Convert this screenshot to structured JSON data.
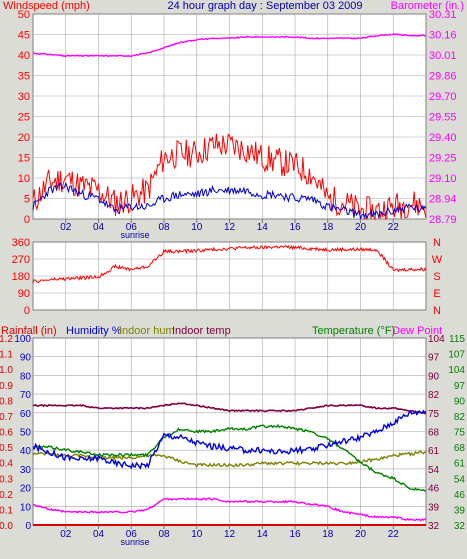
{
  "header": {
    "left_label": "Windspeed (mph)",
    "center_label": "24 hour graph day : September 03 2009",
    "right_label": "Barometer (in.)"
  },
  "colors": {
    "background": "#dcdcd6",
    "plot_bg": "#ffffff",
    "grid": "#a8a8a8",
    "wind_speed": "#ff0000",
    "wind_avg": "#0000cc",
    "barometer": "#ff00ff",
    "direction": "#ff0000",
    "rainfall": "#dd0000",
    "humidity": "#0000dd",
    "indoor_hum": "#808000",
    "indoor_temp": "#800040",
    "temperature": "#008000",
    "dew_point": "#ff00ff"
  },
  "x_axis": {
    "tick_labels": [
      "02",
      "04",
      "06",
      "08",
      "10",
      "12",
      "14",
      "16",
      "18",
      "20",
      "22"
    ],
    "sunrise_label": "sunrise"
  },
  "panel3_labels": {
    "rainfall": "Rainfall (in)",
    "humidity": "Humidity %",
    "indoor_hum": "Indoor hum",
    "indoor_temp": "Indoor temp",
    "temperature": "Temperature (°F)",
    "dew_point": "Dew Point"
  },
  "chart_data": [
    {
      "type": "line",
      "title": "24 hour graph day : September 03 2009",
      "ylabel": "Windspeed (mph)",
      "y2label": "Barometer (in.)",
      "ylim": [
        0,
        50
      ],
      "y_ticks": [
        "0",
        "5",
        "10",
        "15",
        "20",
        "25",
        "30",
        "35",
        "40",
        "45",
        "50"
      ],
      "y2lim": [
        28.79,
        30.31
      ],
      "y2_ticks": [
        "28.79",
        "28.94",
        "29.10",
        "29.25",
        "29.40",
        "29.55",
        "29.70",
        "29.86",
        "30.01",
        "30.16",
        "30.31"
      ],
      "x": [
        0,
        1,
        2,
        3,
        4,
        5,
        6,
        7,
        8,
        9,
        10,
        11,
        12,
        13,
        14,
        15,
        16,
        17,
        18,
        19,
        20,
        21,
        22,
        23,
        24
      ],
      "series": [
        {
          "name": "Windspeed (mph)",
          "axis": "left",
          "values": [
            4,
            9,
            10,
            8,
            7,
            4,
            5,
            7,
            15,
            16,
            16,
            18,
            18,
            17,
            15,
            14,
            13,
            11,
            5,
            4,
            2,
            2,
            3,
            4,
            3
          ]
        },
        {
          "name": "wind average",
          "axis": "left",
          "values": [
            3,
            7,
            8,
            6,
            5,
            2,
            3,
            3,
            5,
            6,
            6,
            7,
            7,
            7,
            6,
            6,
            5,
            5,
            3,
            2,
            1,
            1,
            2,
            3,
            2
          ]
        },
        {
          "name": "Barometer (in.)",
          "axis": "right",
          "values": [
            30.02,
            30.01,
            30.0,
            30.0,
            30.0,
            30.0,
            30.0,
            30.02,
            30.06,
            30.1,
            30.12,
            30.13,
            30.13,
            30.14,
            30.14,
            30.14,
            30.14,
            30.13,
            30.13,
            30.13,
            30.13,
            30.15,
            30.16,
            30.15,
            30.15
          ]
        }
      ]
    },
    {
      "type": "line",
      "y_ticks": [
        "0",
        "90",
        "180",
        "270",
        "360"
      ],
      "ylim": [
        0,
        360
      ],
      "y2_ticks": [
        "N",
        "E",
        "S",
        "W",
        "N"
      ],
      "x": [
        0,
        1,
        2,
        3,
        4,
        5,
        6,
        7,
        8,
        9,
        10,
        11,
        12,
        13,
        14,
        15,
        16,
        17,
        18,
        19,
        20,
        21,
        22,
        23,
        24
      ],
      "series": [
        {
          "name": "wind direction",
          "values": [
            150,
            160,
            165,
            170,
            175,
            230,
            215,
            230,
            310,
            310,
            315,
            320,
            325,
            330,
            330,
            335,
            330,
            325,
            320,
            320,
            320,
            320,
            210,
            215,
            215
          ]
        }
      ]
    },
    {
      "type": "line",
      "y_left_outer_ticks": [
        "0.0",
        "0.1",
        "0.2",
        "0.3",
        "0.4",
        "0.5",
        "0.6",
        "0.7",
        "0.8",
        "0.9",
        "1.0",
        "1.1",
        "1.2"
      ],
      "y_left_inner_ticks": [
        "0",
        "10",
        "20",
        "30",
        "40",
        "50",
        "60",
        "70",
        "80",
        "90",
        "100"
      ],
      "y_right_inner_ticks": [
        "32",
        "39",
        "46",
        "54",
        "61",
        "68",
        "75",
        "82",
        "90",
        "97",
        "104"
      ],
      "y_right_outer_ticks": [
        "32",
        "39",
        "46",
        "54",
        "61",
        "68",
        "75",
        "82",
        "90",
        "97",
        "104",
        "107",
        "115"
      ],
      "x": [
        0,
        1,
        2,
        3,
        4,
        5,
        6,
        7,
        8,
        9,
        10,
        11,
        12,
        13,
        14,
        15,
        16,
        17,
        18,
        19,
        20,
        21,
        22,
        23,
        24
      ],
      "series": [
        {
          "name": "Rainfall (in)",
          "values": [
            0,
            0,
            0,
            0,
            0,
            0,
            0,
            0,
            0,
            0,
            0,
            0,
            0,
            0,
            0,
            0,
            0,
            0,
            0,
            0,
            0,
            0,
            0,
            0,
            0
          ]
        },
        {
          "name": "Humidity %",
          "values": [
            42,
            39,
            36,
            35,
            36,
            33,
            32,
            32,
            48,
            47,
            44,
            42,
            41,
            40,
            40,
            39,
            40,
            40,
            43,
            45,
            47,
            50,
            55,
            60,
            61
          ]
        },
        {
          "name": "Indoor hum",
          "values": [
            38,
            38,
            37,
            37,
            36,
            36,
            36,
            37,
            37,
            34,
            32,
            32,
            32,
            32,
            33,
            33,
            33,
            33,
            33,
            33,
            34,
            35,
            37,
            38,
            39
          ]
        },
        {
          "name": "Indoor temp",
          "values": [
            78,
            78,
            78,
            78,
            77,
            77,
            77,
            77,
            78,
            79,
            78,
            77,
            76,
            76,
            76,
            76,
            76,
            77,
            78,
            78,
            78,
            77,
            77,
            76,
            75
          ]
        },
        {
          "name": "Temperature (°F)",
          "values": [
            62,
            62,
            61,
            60,
            59,
            59,
            59,
            59,
            66,
            69,
            68,
            68,
            69,
            69,
            70,
            70,
            69,
            68,
            65,
            61,
            56,
            52,
            50,
            46,
            45
          ]
        },
        {
          "name": "Dew Point",
          "values": [
            40,
            38,
            37,
            37,
            37,
            37,
            37,
            38,
            42,
            42,
            42,
            42,
            41,
            41,
            41,
            41,
            41,
            40,
            39,
            37,
            36,
            35,
            35,
            34,
            34
          ]
        }
      ]
    }
  ]
}
